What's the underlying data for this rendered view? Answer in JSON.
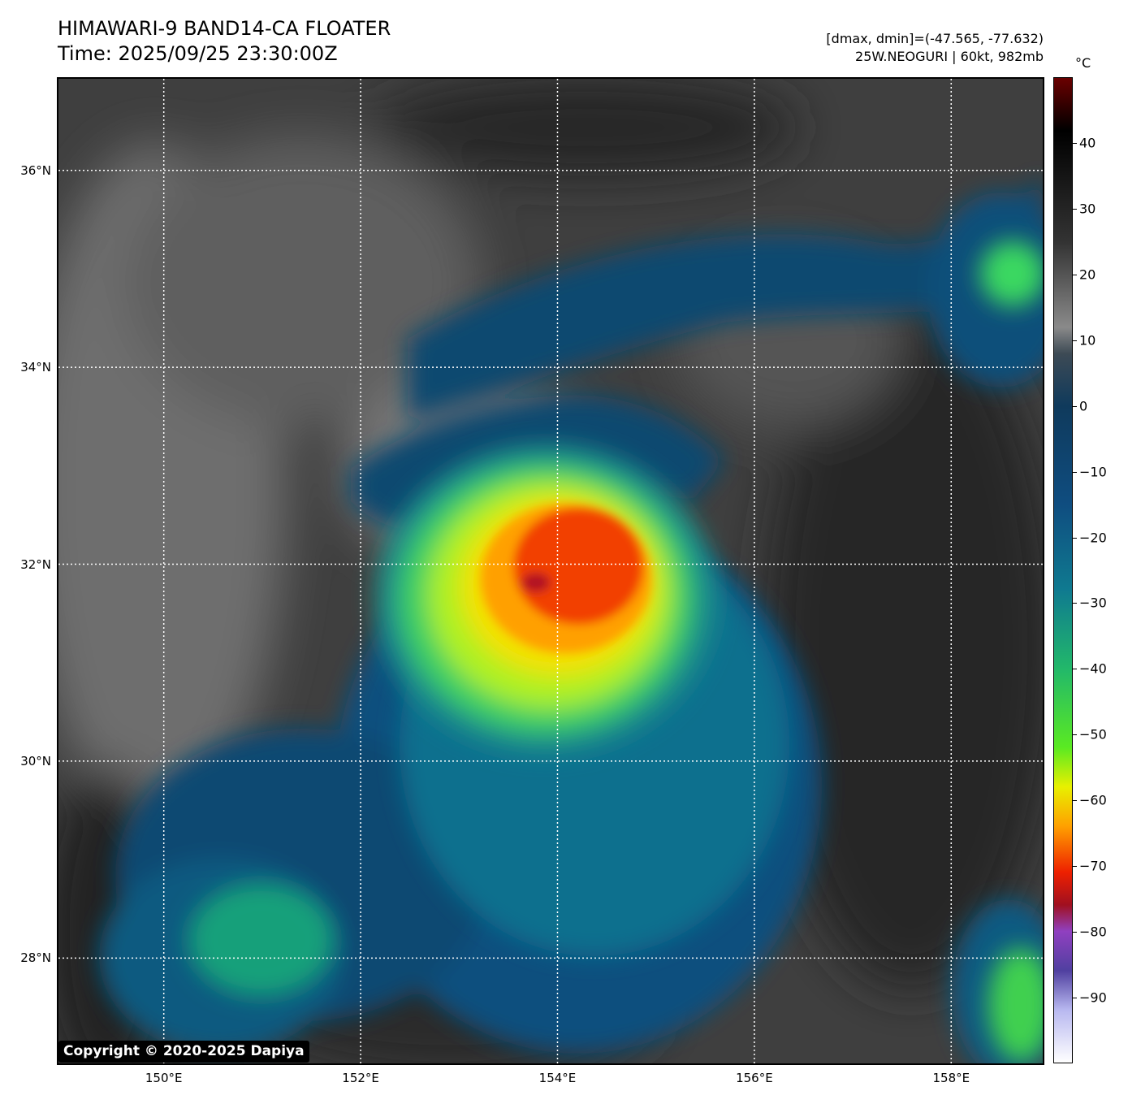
{
  "title_line1": "HIMAWARI-9 BAND14-CA FLOATER",
  "title_line2": "Time: 2025/09/25 23:30:00Z",
  "info_line1": "[dmax, dmin]=(-47.565, -77.632)",
  "info_line2": "25W.NEOGURI | 60kt, 982mb",
  "copyright": "Copyright © 2020-2025 Dapiya",
  "map": {
    "lon_range": [
      148.93,
      158.93
    ],
    "lat_range": [
      26.93,
      36.93
    ],
    "lat_labels": [
      {
        "value": 36,
        "text": "36°N"
      },
      {
        "value": 34,
        "text": "34°N"
      },
      {
        "value": 32,
        "text": "32°N"
      },
      {
        "value": 30,
        "text": "30°N"
      },
      {
        "value": 28,
        "text": "28°N"
      }
    ],
    "lon_labels": [
      {
        "value": 150,
        "text": "150°E"
      },
      {
        "value": 152,
        "text": "152°E"
      },
      {
        "value": 154,
        "text": "154°E"
      },
      {
        "value": 156,
        "text": "156°E"
      },
      {
        "value": 158,
        "text": "158°E"
      }
    ],
    "storm_center": {
      "lon": 154.2,
      "lat": 31.85
    }
  },
  "colorbar": {
    "unit": "°C",
    "range": [
      -100,
      50
    ],
    "ticks": [
      {
        "value": 40,
        "text": "40"
      },
      {
        "value": 30,
        "text": "30"
      },
      {
        "value": 20,
        "text": "20"
      },
      {
        "value": 10,
        "text": "10"
      },
      {
        "value": 0,
        "text": "0"
      },
      {
        "value": -10,
        "text": "−10"
      },
      {
        "value": -20,
        "text": "−20"
      },
      {
        "value": -30,
        "text": "−30"
      },
      {
        "value": -40,
        "text": "−40"
      },
      {
        "value": -50,
        "text": "−50"
      },
      {
        "value": -60,
        "text": "−60"
      },
      {
        "value": -70,
        "text": "−70"
      },
      {
        "value": -80,
        "text": "−80"
      },
      {
        "value": -90,
        "text": "−90"
      }
    ],
    "stops": [
      {
        "value": 50,
        "color": "#6a0000"
      },
      {
        "value": 42,
        "color": "#000000"
      },
      {
        "value": 25,
        "color": "#333333"
      },
      {
        "value": 12,
        "color": "#8a8a8a"
      },
      {
        "value": 8,
        "color": "#3d4a55"
      },
      {
        "value": 0,
        "color": "#0f3a5c"
      },
      {
        "value": -15,
        "color": "#0f4d80"
      },
      {
        "value": -28,
        "color": "#0f7a90"
      },
      {
        "value": -40,
        "color": "#22b86a"
      },
      {
        "value": -52,
        "color": "#5aea22"
      },
      {
        "value": -58,
        "color": "#e8f000"
      },
      {
        "value": -64,
        "color": "#ffa000"
      },
      {
        "value": -71,
        "color": "#ee2000"
      },
      {
        "value": -76,
        "color": "#a01020"
      },
      {
        "value": -80,
        "color": "#9040c0"
      },
      {
        "value": -86,
        "color": "#5040a0"
      },
      {
        "value": -92,
        "color": "#b8b8f0"
      },
      {
        "value": -100,
        "color": "#ffffff"
      }
    ]
  }
}
